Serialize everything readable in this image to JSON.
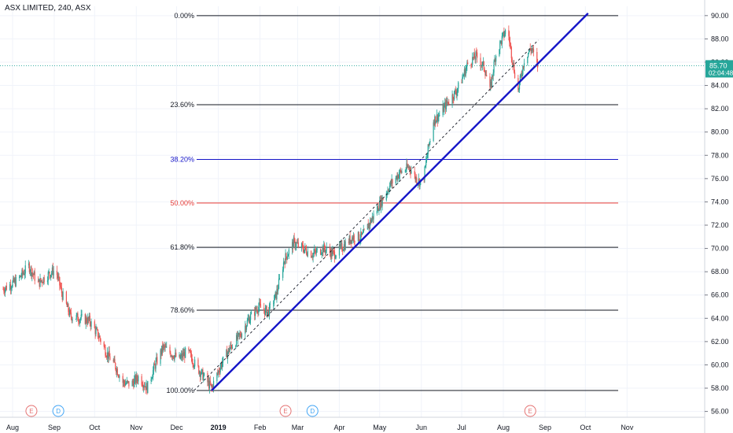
{
  "header": {
    "symbol_line": "ASX LIMITED, 240, ASX"
  },
  "price_label": {
    "value": "85.70",
    "countdown": "02:04:48",
    "color": "#26a69a"
  },
  "colors": {
    "up": "#26a69a",
    "down": "#ef5350",
    "trend": "#1515c8",
    "grid": "#f0f3fa"
  },
  "chart_data": {
    "type": "candlestick",
    "symbol": "ASX LIMITED",
    "interval": "240",
    "exchange": "ASX",
    "y_axis": {
      "min": 55.5,
      "max": 90.8,
      "ticks": [
        "56.00",
        "58.00",
        "60.00",
        "62.00",
        "64.00",
        "66.00",
        "68.00",
        "70.00",
        "72.00",
        "74.00",
        "76.00",
        "78.00",
        "80.00",
        "82.00",
        "84.00",
        "86.00",
        "88.00",
        "90.00"
      ]
    },
    "x_axis": {
      "labels": [
        "Aug",
        "Sep",
        "Oct",
        "Nov",
        "Dec",
        "2019",
        "Feb",
        "Mar",
        "Apr",
        "May",
        "Jun",
        "Jul",
        "Aug",
        "Sep",
        "Oct",
        "Nov"
      ]
    },
    "fib_levels": [
      {
        "label": "0.00%",
        "price": 90.0,
        "color": "#131722"
      },
      {
        "label": "23.60%",
        "price": 82.35,
        "color": "#131722"
      },
      {
        "label": "38.20%",
        "price": 77.65,
        "color": "#1515c8"
      },
      {
        "label": "50.00%",
        "price": 73.9,
        "color": "#e53935"
      },
      {
        "label": "61.80%",
        "price": 70.1,
        "color": "#131722"
      },
      {
        "label": "78.60%",
        "price": 64.7,
        "color": "#131722"
      },
      {
        "label": "100.00%",
        "price": 57.8,
        "color": "#131722"
      }
    ],
    "trend_line": {
      "start": {
        "date": "2018-12-27",
        "price": 57.8
      },
      "end": {
        "date": "2019-10-03",
        "price": 90.2
      }
    },
    "dashed_line": {
      "start": {
        "date": "2018-12-14",
        "price": 57.8
      },
      "end": {
        "date": "2019-08-27",
        "price": 87.9
      }
    },
    "events": [
      {
        "letter": "E",
        "date": "2018-08-15",
        "color": "#e57373"
      },
      {
        "letter": "D",
        "date": "2018-09-04",
        "color": "#42a5f5"
      },
      {
        "letter": "E",
        "date": "2019-02-20",
        "color": "#e57373"
      },
      {
        "letter": "D",
        "date": "2019-03-12",
        "color": "#42a5f5"
      },
      {
        "letter": "E",
        "date": "2019-08-21",
        "color": "#e57373"
      }
    ],
    "price_path": [
      [
        "2018-07-25",
        66.5
      ],
      [
        "2018-08-05",
        67.3
      ],
      [
        "2018-08-13",
        68.5
      ],
      [
        "2018-08-20",
        67.0
      ],
      [
        "2018-08-28",
        67.8
      ],
      [
        "2018-09-02",
        68.2
      ],
      [
        "2018-09-07",
        66.0
      ],
      [
        "2018-09-13",
        64.2
      ],
      [
        "2018-09-20",
        64.0
      ],
      [
        "2018-09-27",
        63.8
      ],
      [
        "2018-10-04",
        62.5
      ],
      [
        "2018-10-10",
        61.0
      ],
      [
        "2018-10-16",
        60.0
      ],
      [
        "2018-10-22",
        58.5
      ],
      [
        "2018-10-28",
        58.3
      ],
      [
        "2018-11-03",
        59.0
      ],
      [
        "2018-11-09",
        58.0
      ],
      [
        "2018-11-15",
        60.0
      ],
      [
        "2018-11-21",
        61.5
      ],
      [
        "2018-11-27",
        61.0
      ],
      [
        "2018-12-03",
        60.5
      ],
      [
        "2018-12-09",
        61.2
      ],
      [
        "2018-12-15",
        60.0
      ],
      [
        "2018-12-21",
        59.0
      ],
      [
        "2018-12-27",
        58.0
      ],
      [
        "2019-01-03",
        60.0
      ],
      [
        "2019-01-10",
        61.5
      ],
      [
        "2019-01-17",
        62.5
      ],
      [
        "2019-01-24",
        64.0
      ],
      [
        "2019-01-31",
        65.0
      ],
      [
        "2019-02-07",
        64.5
      ],
      [
        "2019-02-13",
        66.0
      ],
      [
        "2019-02-19",
        69.0
      ],
      [
        "2019-02-26",
        70.5
      ],
      [
        "2019-03-05",
        70.0
      ],
      [
        "2019-03-12",
        69.5
      ],
      [
        "2019-03-20",
        70.0
      ],
      [
        "2019-03-28",
        69.5
      ],
      [
        "2019-04-04",
        70.2
      ],
      [
        "2019-04-11",
        71.0
      ],
      [
        "2019-04-18",
        71.0
      ],
      [
        "2019-04-25",
        72.5
      ],
      [
        "2019-05-02",
        74.0
      ],
      [
        "2019-05-09",
        75.5
      ],
      [
        "2019-05-16",
        76.5
      ],
      [
        "2019-05-23",
        77.0
      ],
      [
        "2019-05-28",
        76.0
      ],
      [
        "2019-06-02",
        75.5
      ],
      [
        "2019-06-06",
        78.5
      ],
      [
        "2019-06-10",
        81.0
      ],
      [
        "2019-06-15",
        81.5
      ],
      [
        "2019-06-20",
        82.5
      ],
      [
        "2019-06-27",
        83.5
      ],
      [
        "2019-07-01",
        84.5
      ],
      [
        "2019-07-06",
        86.0
      ],
      [
        "2019-07-12",
        86.5
      ],
      [
        "2019-07-18",
        85.5
      ],
      [
        "2019-07-22",
        83.5
      ],
      [
        "2019-07-26",
        86.5
      ],
      [
        "2019-07-31",
        88.0
      ],
      [
        "2019-08-04",
        89.0
      ],
      [
        "2019-08-08",
        86.0
      ],
      [
        "2019-08-12",
        83.5
      ],
      [
        "2019-08-17",
        86.5
      ],
      [
        "2019-08-22",
        87.2
      ],
      [
        "2019-08-26",
        85.7
      ]
    ]
  }
}
